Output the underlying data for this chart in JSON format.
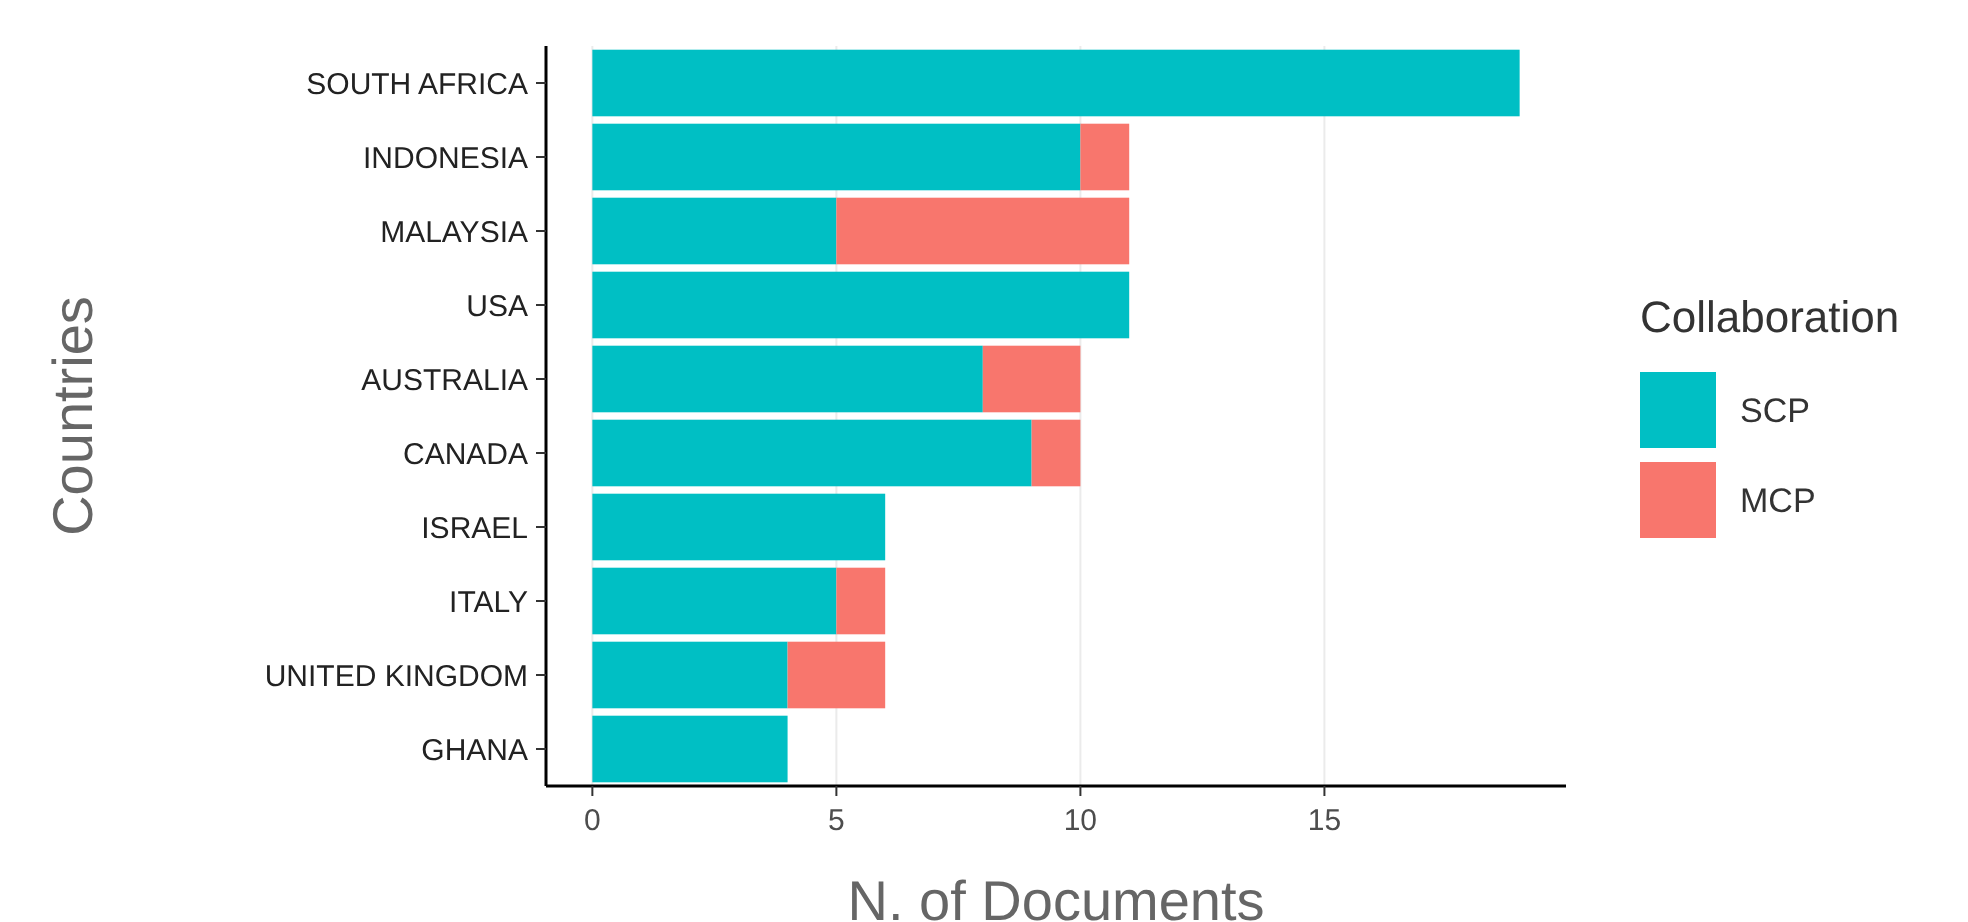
{
  "chart_data": {
    "type": "bar",
    "orientation": "horizontal",
    "stacked": true,
    "categories": [
      "SOUTH AFRICA",
      "INDONESIA",
      "MALAYSIA",
      "USA",
      "AUSTRALIA",
      "CANADA",
      "ISRAEL",
      "ITALY",
      "UNITED KINGDOM",
      "GHANA"
    ],
    "series": [
      {
        "name": "SCP",
        "color": "#00bfc4",
        "values": [
          19,
          10,
          5,
          11,
          8,
          9,
          6,
          5,
          4,
          4
        ]
      },
      {
        "name": "MCP",
        "color": "#f8766d",
        "values": [
          0,
          1,
          6,
          0,
          2,
          1,
          0,
          1,
          2,
          0
        ]
      }
    ],
    "xlim": [
      -0.95,
      19.95
    ],
    "xticks": [
      0,
      5,
      10,
      15
    ],
    "xlabel": "N. of Documents",
    "ylabel": "Countries",
    "legend_title": "Collaboration",
    "legend": "right",
    "grid": "x"
  }
}
